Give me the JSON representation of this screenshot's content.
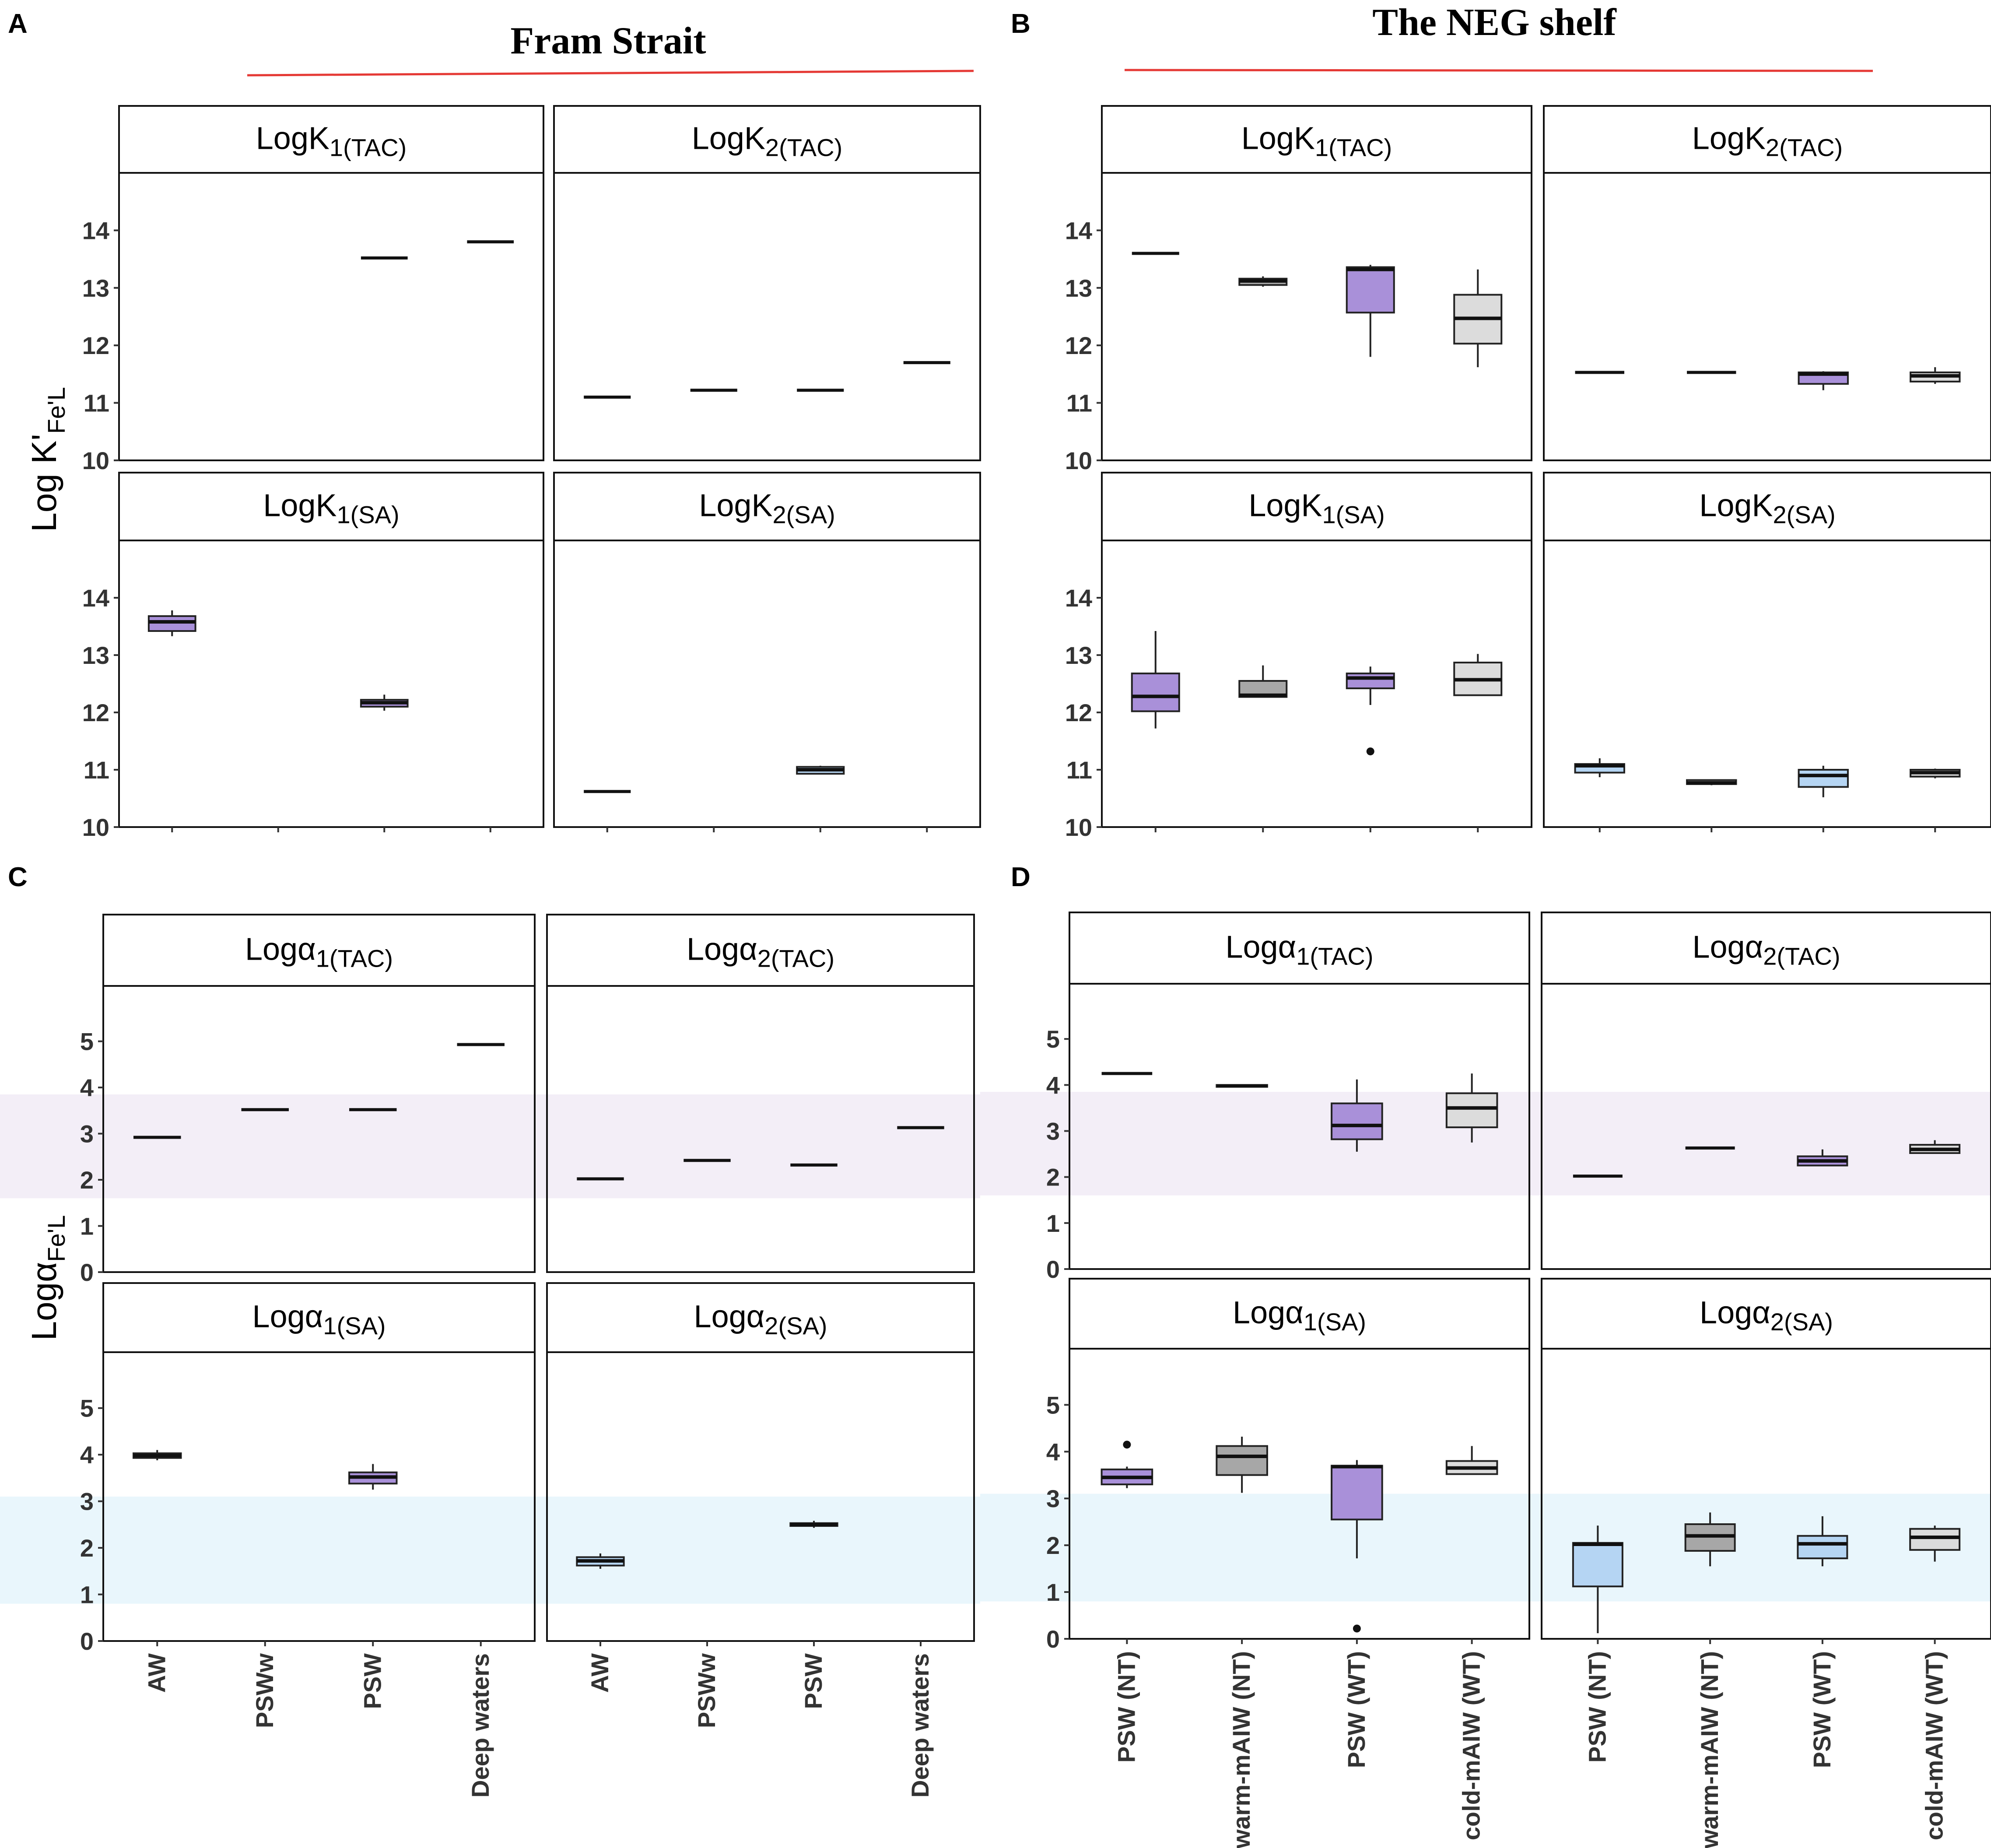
{
  "figure": {
    "panel_letters": [
      "A",
      "B",
      "C",
      "D"
    ],
    "section_titles": {
      "fram": "Fram Strait",
      "neg": "The NEG shelf"
    },
    "ylabels": {
      "top_prefix": "Log K'",
      "top_sub": "Fe'L",
      "bottom_prefix": "Logα",
      "bottom_sub": "Fe'L"
    },
    "colors": {
      "purple": "#a990d9",
      "dark_grey": "#a7a7a7",
      "light_grey": "#dcdcdc",
      "light_blue": "#b5d5f3",
      "lavender_band": "#f3eef7",
      "blue_band": "#e9f6fc",
      "red_line": "#e53935"
    }
  },
  "chart_data": [
    {
      "id": "fram_K",
      "type": "boxplot",
      "section": "Fram Strait",
      "panel": "A",
      "ylabel": "Log K'Fe'L",
      "ylim": [
        10,
        15
      ],
      "yticks": [
        10,
        11,
        12,
        13,
        14
      ],
      "categories": [
        "AW",
        "PSWw",
        "PSW",
        "Deep waters"
      ],
      "facets": [
        {
          "title_main": "LogK",
          "title_sub": "1(TAC)",
          "boxes": [
            null,
            null,
            {
              "med": 13.52,
              "q1": 13.52,
              "q3": 13.52,
              "lo": 13.52,
              "hi": 13.52,
              "color": "dark_grey"
            },
            {
              "med": 13.8,
              "q1": 13.8,
              "q3": 13.8,
              "lo": 13.8,
              "hi": 13.8,
              "color": "dark_grey"
            }
          ]
        },
        {
          "title_main": "LogK",
          "title_sub": "2(TAC)",
          "boxes": [
            {
              "med": 11.1,
              "q1": 11.1,
              "q3": 11.1,
              "lo": 11.1,
              "hi": 11.1,
              "color": "purple"
            },
            {
              "med": 11.22,
              "q1": 11.22,
              "q3": 11.22,
              "lo": 11.22,
              "hi": 11.22,
              "color": "purple"
            },
            {
              "med": 11.22,
              "q1": 11.22,
              "q3": 11.22,
              "lo": 11.22,
              "hi": 11.22,
              "color": "purple"
            },
            {
              "med": 11.7,
              "q1": 11.7,
              "q3": 11.7,
              "lo": 11.7,
              "hi": 11.7,
              "color": "purple"
            }
          ]
        },
        {
          "title_main": "LogK",
          "title_sub": "1(SA)",
          "boxes": [
            {
              "med": 13.58,
              "q1": 13.42,
              "q3": 13.68,
              "lo": 13.33,
              "hi": 13.78,
              "color": "purple"
            },
            null,
            {
              "med": 12.17,
              "q1": 12.1,
              "q3": 12.22,
              "lo": 12.03,
              "hi": 12.31,
              "color": "purple"
            },
            null
          ]
        },
        {
          "title_main": "LogK",
          "title_sub": "2(SA)",
          "boxes": [
            {
              "med": 10.62,
              "q1": 10.62,
              "q3": 10.62,
              "lo": 10.62,
              "hi": 10.62,
              "color": "light_blue"
            },
            null,
            {
              "med": 11.0,
              "q1": 10.93,
              "q3": 11.05,
              "lo": 10.93,
              "hi": 11.07,
              "color": "light_blue"
            },
            null
          ]
        }
      ]
    },
    {
      "id": "neg_K",
      "type": "boxplot",
      "section": "The NEG shelf",
      "panel": "B",
      "ylabel": "Log K'Fe'L",
      "ylim": [
        10,
        15
      ],
      "yticks": [
        10,
        11,
        12,
        13,
        14
      ],
      "categories": [
        "PSW (NT)",
        "warm-mAIW (NT)",
        "PSW (WT)",
        "cold-mAIW (WT)"
      ],
      "facets": [
        {
          "title_main": "LogK",
          "title_sub": "1(TAC)",
          "boxes": [
            {
              "med": 13.6,
              "q1": 13.6,
              "q3": 13.6,
              "lo": 13.6,
              "hi": 13.6,
              "color": "purple"
            },
            {
              "med": 13.12,
              "q1": 13.05,
              "q3": 13.16,
              "lo": 13.02,
              "hi": 13.2,
              "color": "dark_grey"
            },
            {
              "med": 13.32,
              "q1": 12.57,
              "q3": 13.36,
              "lo": 11.8,
              "hi": 13.4,
              "color": "purple"
            },
            {
              "med": 12.47,
              "q1": 12.03,
              "q3": 12.88,
              "lo": 11.62,
              "hi": 13.32,
              "color": "light_grey"
            }
          ]
        },
        {
          "title_main": "LogK",
          "title_sub": "2(TAC)",
          "boxes": [
            {
              "med": 11.53,
              "q1": 11.53,
              "q3": 11.53,
              "lo": 11.53,
              "hi": 11.53,
              "color": "purple"
            },
            {
              "med": 11.53,
              "q1": 11.53,
              "q3": 11.53,
              "lo": 11.53,
              "hi": 11.53,
              "color": "purple"
            },
            {
              "med": 11.5,
              "q1": 11.33,
              "q3": 11.53,
              "lo": 11.22,
              "hi": 11.55,
              "color": "purple"
            },
            {
              "med": 11.47,
              "q1": 11.37,
              "q3": 11.53,
              "lo": 11.33,
              "hi": 11.62,
              "color": "light_grey"
            }
          ]
        },
        {
          "title_main": "LogK",
          "title_sub": "1(SA)",
          "boxes": [
            {
              "med": 12.28,
              "q1": 12.02,
              "q3": 12.68,
              "lo": 11.72,
              "hi": 13.42,
              "color": "purple"
            },
            {
              "med": 12.3,
              "q1": 12.27,
              "q3": 12.55,
              "lo": 12.27,
              "hi": 12.82,
              "color": "dark_grey"
            },
            {
              "med": 12.6,
              "q1": 12.42,
              "q3": 12.68,
              "lo": 12.13,
              "hi": 12.8,
              "outliers": [
                11.32
              ],
              "color": "purple"
            },
            {
              "med": 12.57,
              "q1": 12.3,
              "q3": 12.87,
              "lo": 12.3,
              "hi": 13.02,
              "color": "light_grey"
            }
          ]
        },
        {
          "title_main": "LogK",
          "title_sub": "2(SA)",
          "boxes": [
            {
              "med": 11.07,
              "q1": 10.95,
              "q3": 11.1,
              "lo": 10.87,
              "hi": 11.2,
              "color": "light_blue"
            },
            {
              "med": 10.77,
              "q1": 10.75,
              "q3": 10.82,
              "lo": 10.73,
              "hi": 10.82,
              "color": "dark_grey"
            },
            {
              "med": 10.9,
              "q1": 10.7,
              "q3": 11.0,
              "lo": 10.52,
              "hi": 11.07,
              "color": "light_blue"
            },
            {
              "med": 10.95,
              "q1": 10.88,
              "q3": 11.0,
              "lo": 10.85,
              "hi": 11.02,
              "color": "light_grey"
            }
          ]
        }
      ]
    },
    {
      "id": "fram_alpha",
      "type": "boxplot",
      "section": "Fram Strait",
      "panel": "C",
      "ylabel": "LogαFe'L",
      "ylim": [
        0,
        6.2
      ],
      "yticks": [
        0,
        1,
        2,
        3,
        4,
        5
      ],
      "categories": [
        "AW",
        "PSWw",
        "PSW",
        "Deep waters"
      ],
      "bands": {
        "top": [
          1.6,
          3.85
        ],
        "bottom": [
          0.8,
          3.1
        ]
      },
      "facets": [
        {
          "title_main": "Logα",
          "title_sub": "1(TAC)",
          "boxes": [
            {
              "med": 2.92,
              "q1": 2.92,
              "q3": 2.92,
              "lo": 2.92,
              "hi": 2.92,
              "color": "purple"
            },
            {
              "med": 3.52,
              "q1": 3.52,
              "q3": 3.52,
              "lo": 3.52,
              "hi": 3.52,
              "color": "purple"
            },
            {
              "med": 3.52,
              "q1": 3.52,
              "q3": 3.52,
              "lo": 3.52,
              "hi": 3.52,
              "color": "purple"
            },
            {
              "med": 4.93,
              "q1": 4.93,
              "q3": 4.93,
              "lo": 4.93,
              "hi": 4.93,
              "color": "purple"
            }
          ]
        },
        {
          "title_main": "Logα",
          "title_sub": "2(TAC)",
          "boxes": [
            {
              "med": 2.02,
              "q1": 2.02,
              "q3": 2.02,
              "lo": 2.02,
              "hi": 2.02,
              "color": "purple"
            },
            {
              "med": 2.42,
              "q1": 2.42,
              "q3": 2.42,
              "lo": 2.42,
              "hi": 2.42,
              "color": "purple"
            },
            {
              "med": 2.32,
              "q1": 2.32,
              "q3": 2.32,
              "lo": 2.32,
              "hi": 2.32,
              "color": "purple"
            },
            {
              "med": 3.13,
              "q1": 3.13,
              "q3": 3.13,
              "lo": 3.13,
              "hi": 3.13,
              "color": "purple"
            }
          ]
        },
        {
          "title_main": "Logα",
          "title_sub": "1(SA)",
          "boxes": [
            {
              "med": 3.98,
              "q1": 3.93,
              "q3": 4.03,
              "lo": 3.88,
              "hi": 4.1,
              "color": "purple"
            },
            null,
            {
              "med": 3.52,
              "q1": 3.38,
              "q3": 3.62,
              "lo": 3.25,
              "hi": 3.8,
              "color": "purple"
            },
            null
          ]
        },
        {
          "title_main": "Logα",
          "title_sub": "2(SA)",
          "boxes": [
            {
              "med": 1.72,
              "q1": 1.62,
              "q3": 1.8,
              "lo": 1.55,
              "hi": 1.88,
              "color": "light_blue"
            },
            null,
            {
              "med": 2.5,
              "q1": 2.47,
              "q3": 2.53,
              "lo": 2.43,
              "hi": 2.58,
              "color": "light_blue"
            },
            null
          ]
        }
      ]
    },
    {
      "id": "neg_alpha",
      "type": "boxplot",
      "section": "The NEG shelf",
      "panel": "D",
      "ylabel": "LogαFe'L",
      "ylim": [
        0,
        6.2
      ],
      "yticks": [
        0,
        1,
        2,
        3,
        4,
        5
      ],
      "categories": [
        "PSW (NT)",
        "warm-mAIW (NT)",
        "PSW (WT)",
        "cold-mAIW (WT)"
      ],
      "bands": {
        "top": [
          1.6,
          3.85
        ],
        "bottom": [
          0.8,
          3.1
        ]
      },
      "facets": [
        {
          "title_main": "Logα",
          "title_sub": "1(TAC)",
          "boxes": [
            {
              "med": 4.25,
              "q1": 4.25,
              "q3": 4.25,
              "lo": 4.25,
              "hi": 4.25,
              "color": "purple"
            },
            {
              "med": 3.98,
              "q1": 3.96,
              "q3": 4.0,
              "lo": 3.96,
              "hi": 4.0,
              "color": "dark_grey"
            },
            {
              "med": 3.12,
              "q1": 2.82,
              "q3": 3.6,
              "lo": 2.55,
              "hi": 4.12,
              "color": "purple"
            },
            {
              "med": 3.5,
              "q1": 3.08,
              "q3": 3.82,
              "lo": 2.75,
              "hi": 4.25,
              "color": "light_grey"
            }
          ]
        },
        {
          "title_main": "Logα",
          "title_sub": "2(TAC)",
          "boxes": [
            {
              "med": 2.02,
              "q1": 2.02,
              "q3": 2.02,
              "lo": 2.02,
              "hi": 2.02,
              "color": "purple"
            },
            {
              "med": 2.63,
              "q1": 2.63,
              "q3": 2.63,
              "lo": 2.63,
              "hi": 2.63,
              "color": "purple"
            },
            {
              "med": 2.35,
              "q1": 2.25,
              "q3": 2.45,
              "lo": 2.25,
              "hi": 2.6,
              "color": "purple"
            },
            {
              "med": 2.6,
              "q1": 2.52,
              "q3": 2.7,
              "lo": 2.52,
              "hi": 2.8,
              "color": "light_grey"
            }
          ]
        },
        {
          "title_main": "Logα",
          "title_sub": "1(SA)",
          "boxes": [
            {
              "med": 3.45,
              "q1": 3.3,
              "q3": 3.62,
              "lo": 3.22,
              "hi": 3.68,
              "outliers": [
                4.15
              ],
              "color": "purple"
            },
            {
              "med": 3.9,
              "q1": 3.5,
              "q3": 4.12,
              "lo": 3.12,
              "hi": 4.32,
              "color": "dark_grey"
            },
            {
              "med": 3.68,
              "q1": 2.55,
              "q3": 3.7,
              "lo": 1.72,
              "hi": 3.82,
              "outliers": [
                0.22
              ],
              "color": "purple"
            },
            {
              "med": 3.65,
              "q1": 3.52,
              "q3": 3.8,
              "lo": 3.52,
              "hi": 4.12,
              "color": "light_grey"
            }
          ]
        },
        {
          "title_main": "Logα",
          "title_sub": "2(SA)",
          "boxes": [
            {
              "med": 2.02,
              "q1": 1.12,
              "q3": 2.05,
              "lo": 0.12,
              "hi": 2.42,
              "color": "light_blue"
            },
            {
              "med": 2.2,
              "q1": 1.88,
              "q3": 2.45,
              "lo": 1.55,
              "hi": 2.7,
              "color": "dark_grey"
            },
            {
              "med": 2.03,
              "q1": 1.72,
              "q3": 2.2,
              "lo": 1.55,
              "hi": 2.62,
              "color": "light_blue"
            },
            {
              "med": 2.17,
              "q1": 1.9,
              "q3": 2.35,
              "lo": 1.65,
              "hi": 2.42,
              "color": "light_grey"
            }
          ]
        }
      ]
    }
  ]
}
